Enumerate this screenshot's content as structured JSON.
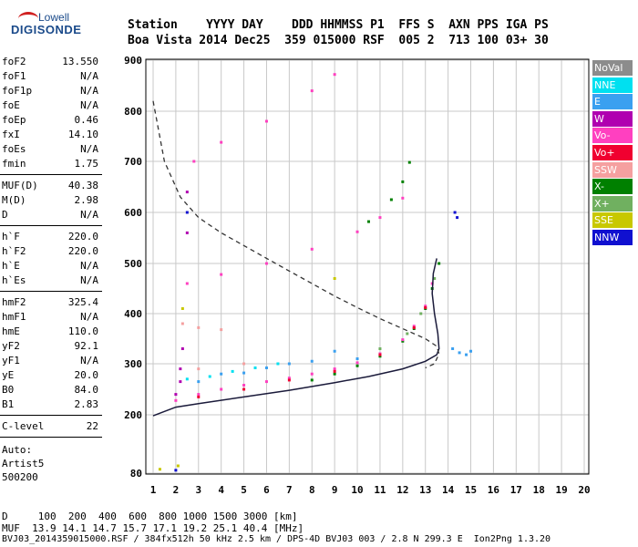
{
  "logo": {
    "line1": "Lowell",
    "line2": "DIGISONDE"
  },
  "header": {
    "row1": "Station    YYYY DAY    DDD HHMMSS P1  FFS S  AXN PPS IGA PS",
    "row2": "Boa Vista 2014 Dec25  359 015000 RSF  005 2  713 100 03+ 30"
  },
  "params": {
    "group1": [
      {
        "name": "foF2",
        "value": "13.550"
      },
      {
        "name": "foF1",
        "value": "N/A"
      },
      {
        "name": "foF1p",
        "value": "N/A"
      },
      {
        "name": "foE",
        "value": "N/A"
      },
      {
        "name": "foEp",
        "value": "0.46"
      },
      {
        "name": "fxI",
        "value": "14.10"
      },
      {
        "name": "foEs",
        "value": "N/A"
      },
      {
        "name": "fmin",
        "value": "1.75"
      }
    ],
    "group2": [
      {
        "name": "MUF(D)",
        "value": "40.38"
      },
      {
        "name": "M(D)",
        "value": "2.98"
      },
      {
        "name": "D",
        "value": "N/A"
      }
    ],
    "group3": [
      {
        "name": "h`F",
        "value": "220.0"
      },
      {
        "name": "h`F2",
        "value": "220.0"
      },
      {
        "name": "h`E",
        "value": "N/A"
      },
      {
        "name": "h`Es",
        "value": "N/A"
      }
    ],
    "group4": [
      {
        "name": "hmF2",
        "value": "325.4"
      },
      {
        "name": "hmF1",
        "value": "N/A"
      },
      {
        "name": "hmE",
        "value": "110.0"
      },
      {
        "name": "yF2",
        "value": "92.1"
      },
      {
        "name": "yF1",
        "value": "N/A"
      },
      {
        "name": "yE",
        "value": "20.0"
      },
      {
        "name": "B0",
        "value": "84.0"
      },
      {
        "name": "B1",
        "value": "2.83"
      }
    ],
    "group5": [
      {
        "name": "C-level",
        "value": "22"
      }
    ],
    "auto_lines": [
      "Auto:",
      "Artist5",
      "500200"
    ]
  },
  "legend": [
    {
      "label": "NoVal",
      "color": "#8c8c8c"
    },
    {
      "label": "NNE",
      "color": "#00e0f0"
    },
    {
      "label": "E",
      "color": "#3aa0f0"
    },
    {
      "label": "W",
      "color": "#b000b0"
    },
    {
      "label": "Vo-",
      "color": "#ff40c0"
    },
    {
      "label": "Vo+",
      "color": "#f00030"
    },
    {
      "label": "SSW",
      "color": "#f5a0a0"
    },
    {
      "label": "X-",
      "color": "#008000"
    },
    {
      "label": "X+",
      "color": "#70b060"
    },
    {
      "label": "SSE",
      "color": "#c8c800"
    },
    {
      "label": "NNW",
      "color": "#1010d0"
    }
  ],
  "footer": {
    "line1": "D     100  200  400  600  800 1000 1500 3000 [km]",
    "line2": "MUF  13.9 14.1 14.7 15.7 17.1 19.2 25.1 40.4 [MHz]",
    "line3": "BVJ03_2014359015000.RSF / 384fx512h 50 kHz 2.5 km / DPS-4D BVJ03 003 / 2.8 N 299.3 E  Ion2Png 1.3.20"
  },
  "chart_data": {
    "type": "scatter",
    "xlim": [
      1,
      20
    ],
    "ylim": [
      80,
      900
    ],
    "x_ticks": [
      "1",
      "2",
      "3",
      "4",
      "5",
      "6",
      "7",
      "8",
      "9",
      "10",
      "11",
      "12",
      "13",
      "14",
      "15",
      "16",
      "17",
      "18",
      "19",
      "20"
    ],
    "y_ticks": [
      "80",
      "200",
      "300",
      "400",
      "500",
      "600",
      "700",
      "800",
      "900"
    ],
    "series": [
      {
        "name": "X-",
        "color": "#008000",
        "points": [
          [
            8,
            268
          ],
          [
            9,
            280
          ],
          [
            10,
            296
          ],
          [
            11,
            315
          ],
          [
            12,
            345
          ],
          [
            12.5,
            370
          ],
          [
            13,
            410
          ],
          [
            13.3,
            450
          ],
          [
            13.6,
            500
          ],
          [
            10.5,
            582
          ],
          [
            11.5,
            625
          ],
          [
            12,
            660
          ],
          [
            12.3,
            698
          ]
        ]
      },
      {
        "name": "Vo-",
        "color": "#ff40c0",
        "points": [
          [
            2,
            228
          ],
          [
            3,
            240
          ],
          [
            4,
            250
          ],
          [
            5,
            258
          ],
          [
            6,
            265
          ],
          [
            7,
            272
          ],
          [
            8,
            280
          ],
          [
            9,
            290
          ],
          [
            10,
            302
          ],
          [
            11,
            320
          ],
          [
            12,
            348
          ],
          [
            12.5,
            375
          ],
          [
            13,
            415
          ],
          [
            13.3,
            460
          ],
          [
            2.5,
            460
          ],
          [
            4,
            478
          ],
          [
            6,
            500
          ],
          [
            8,
            528
          ],
          [
            10,
            562
          ],
          [
            11,
            590
          ],
          [
            12,
            628
          ],
          [
            2.8,
            700
          ],
          [
            4,
            738
          ],
          [
            6,
            780
          ],
          [
            8,
            840
          ],
          [
            9,
            872
          ]
        ]
      },
      {
        "name": "E",
        "color": "#3aa0f0",
        "points": [
          [
            3,
            265
          ],
          [
            4,
            280
          ],
          [
            5,
            282
          ],
          [
            6,
            292
          ],
          [
            7,
            300
          ],
          [
            8,
            305
          ],
          [
            9,
            325
          ],
          [
            10,
            310
          ],
          [
            14.2,
            330
          ],
          [
            14.5,
            322
          ],
          [
            14.8,
            318
          ],
          [
            15,
            325
          ]
        ]
      },
      {
        "name": "W",
        "color": "#b000b0",
        "points": [
          [
            2,
            240
          ],
          [
            2.2,
            265
          ],
          [
            2.3,
            330
          ],
          [
            2.5,
            640
          ],
          [
            2.5,
            560
          ],
          [
            2.2,
            290
          ]
        ]
      },
      {
        "name": "Vo+",
        "color": "#f00030",
        "points": [
          [
            3,
            235
          ],
          [
            5,
            250
          ],
          [
            7,
            268
          ],
          [
            9,
            285
          ],
          [
            11,
            318
          ],
          [
            12.5,
            372
          ],
          [
            13,
            412
          ]
        ]
      },
      {
        "name": "NNE",
        "color": "#00e0f0",
        "points": [
          [
            2.5,
            270
          ],
          [
            3.5,
            275
          ],
          [
            4.5,
            285
          ],
          [
            5.5,
            292
          ],
          [
            6.5,
            300
          ]
        ]
      },
      {
        "name": "SSW",
        "color": "#f5a0a0",
        "points": [
          [
            2.3,
            380
          ],
          [
            3,
            372
          ],
          [
            4,
            368
          ],
          [
            3,
            290
          ],
          [
            5,
            300
          ]
        ]
      },
      {
        "name": "X+",
        "color": "#70b060",
        "points": [
          [
            11,
            330
          ],
          [
            12.2,
            360
          ],
          [
            12.8,
            400
          ],
          [
            13.4,
            470
          ]
        ]
      },
      {
        "name": "SSE",
        "color": "#c8c800",
        "points": [
          [
            1.3,
            88
          ],
          [
            2.1,
            95
          ],
          [
            2.3,
            410
          ],
          [
            9,
            470
          ]
        ]
      },
      {
        "name": "NNW",
        "color": "#1010d0",
        "points": [
          [
            2,
            86
          ],
          [
            14.3,
            600
          ],
          [
            14.4,
            590
          ],
          [
            2.5,
            600
          ]
        ]
      }
    ],
    "profile_solid": [
      [
        1,
        198
      ],
      [
        2,
        215
      ],
      [
        3,
        222
      ],
      [
        5,
        235
      ],
      [
        7,
        248
      ],
      [
        9,
        263
      ],
      [
        10.5,
        275
      ],
      [
        12,
        290
      ],
      [
        13,
        305
      ],
      [
        13.5,
        318
      ],
      [
        13.6,
        330
      ],
      [
        13.55,
        360
      ],
      [
        13.4,
        400
      ],
      [
        13.3,
        440
      ],
      [
        13.35,
        480
      ],
      [
        13.5,
        510
      ]
    ],
    "profile_dashed": [
      [
        1,
        820
      ],
      [
        1.5,
        700
      ],
      [
        2.2,
        630
      ],
      [
        3,
        590
      ],
      [
        4,
        560
      ],
      [
        5,
        535
      ],
      [
        6,
        510
      ],
      [
        7,
        485
      ],
      [
        8,
        460
      ],
      [
        9,
        435
      ],
      [
        10,
        412
      ],
      [
        11,
        390
      ],
      [
        12,
        370
      ],
      [
        13,
        350
      ],
      [
        13.5,
        335
      ],
      [
        13.6,
        320
      ],
      [
        13.4,
        300
      ],
      [
        13,
        292
      ]
    ]
  }
}
